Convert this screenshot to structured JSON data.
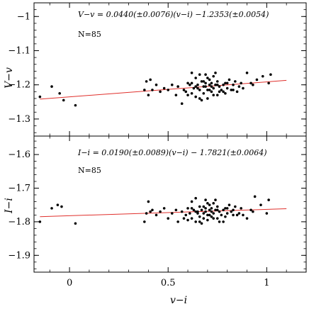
{
  "chart_data": [
    {
      "type": "scatter",
      "xlabel": "",
      "ylabel": "V−v",
      "xlim": [
        -0.18,
        1.2
      ],
      "ylim": [
        -1.35,
        -0.96
      ],
      "yticks": [
        -1.3,
        -1.2,
        -1.1,
        -1.0
      ],
      "ytick_labels": [
        "−1.3",
        "−1.2",
        "−1.1",
        "−1"
      ],
      "annotation": "V−v = 0.0440(±0.0076)(v−i) −1.2353(±0.0054)",
      "n_label": "N=85",
      "fit": {
        "slope": 0.044,
        "intercept": -1.2353,
        "color": "#e0302c"
      },
      "points": [
        [
          -0.15,
          -1.235
        ],
        [
          -0.09,
          -1.205
        ],
        [
          -0.05,
          -1.225
        ],
        [
          -0.03,
          -1.245
        ],
        [
          0.03,
          -1.26
        ],
        [
          0.38,
          -1.215
        ],
        [
          0.39,
          -1.19
        ],
        [
          0.4,
          -1.23
        ],
        [
          0.41,
          -1.185
        ],
        [
          0.42,
          -1.215
        ],
        [
          0.44,
          -1.2
        ],
        [
          0.46,
          -1.22
        ],
        [
          0.48,
          -1.21
        ],
        [
          0.5,
          -1.215
        ],
        [
          0.52,
          -1.2
        ],
        [
          0.54,
          -1.23
        ],
        [
          0.55,
          -1.205
        ],
        [
          0.57,
          -1.255
        ],
        [
          0.58,
          -1.215
        ],
        [
          0.59,
          -1.22
        ],
        [
          0.6,
          -1.195
        ],
        [
          0.61,
          -1.2
        ],
        [
          0.62,
          -1.165
        ],
        [
          0.62,
          -1.225
        ],
        [
          0.63,
          -1.21
        ],
        [
          0.64,
          -1.18
        ],
        [
          0.64,
          -1.235
        ],
        [
          0.65,
          -1.2
        ],
        [
          0.66,
          -1.215
        ],
        [
          0.66,
          -1.17
        ],
        [
          0.67,
          -1.19
        ],
        [
          0.68,
          -1.225
        ],
        [
          0.68,
          -1.205
        ],
        [
          0.69,
          -1.195
        ],
        [
          0.69,
          -1.17
        ],
        [
          0.7,
          -1.215
        ],
        [
          0.7,
          -1.24
        ],
        [
          0.71,
          -1.2
        ],
        [
          0.71,
          -1.185
        ],
        [
          0.72,
          -1.22
        ],
        [
          0.72,
          -1.195
        ],
        [
          0.73,
          -1.21
        ],
        [
          0.73,
          -1.175
        ],
        [
          0.74,
          -1.2
        ],
        [
          0.75,
          -1.23
        ],
        [
          0.75,
          -1.19
        ],
        [
          0.76,
          -1.205
        ],
        [
          0.77,
          -1.215
        ],
        [
          0.78,
          -1.2
        ],
        [
          0.79,
          -1.225
        ],
        [
          0.8,
          -1.195
        ],
        [
          0.81,
          -1.185
        ],
        [
          0.82,
          -1.215
        ],
        [
          0.83,
          -1.2
        ],
        [
          0.84,
          -1.19
        ],
        [
          0.86,
          -1.205
        ],
        [
          0.88,
          -1.21
        ],
        [
          0.9,
          -1.165
        ],
        [
          0.92,
          -1.195
        ],
        [
          0.95,
          -1.185
        ],
        [
          0.98,
          -1.175
        ],
        [
          1.01,
          -1.195
        ],
        [
          1.02,
          -1.17
        ],
        [
          0.76,
          -1.22
        ],
        [
          0.85,
          -1.22
        ],
        [
          0.6,
          -1.23
        ],
        [
          0.67,
          -1.245
        ],
        [
          0.7,
          -1.18
        ],
        [
          0.74,
          -1.165
        ],
        [
          0.78,
          -1.22
        ],
        [
          0.65,
          -1.21
        ],
        [
          0.69,
          -1.205
        ],
        [
          0.73,
          -1.23
        ],
        [
          0.8,
          -1.21
        ],
        [
          0.87,
          -1.195
        ],
        [
          0.93,
          -1.2
        ],
        [
          0.62,
          -1.195
        ],
        [
          0.66,
          -1.24
        ],
        [
          0.72,
          -1.205
        ],
        [
          0.75,
          -1.2
        ],
        [
          0.79,
          -1.195
        ],
        [
          0.83,
          -1.215
        ],
        [
          0.71,
          -1.215
        ],
        [
          0.68,
          -1.19
        ],
        [
          0.64,
          -1.205
        ]
      ]
    },
    {
      "type": "scatter",
      "xlabel": "v−i",
      "ylabel": "I−i",
      "xlim": [
        -0.18,
        1.2
      ],
      "ylim": [
        -1.95,
        -1.545
      ],
      "yticks": [
        -1.9,
        -1.8,
        -1.7,
        -1.6
      ],
      "ytick_labels": [
        "−1.9",
        "−1.8",
        "−1.7",
        "−1.6"
      ],
      "xticks": [
        0,
        0.5,
        1
      ],
      "xtick_labels": [
        "0",
        "0.5",
        "1"
      ],
      "annotation": "I−i = 0.0190(±0.0089)(v−i) − 1.7821(±0.0064)",
      "n_label": "N=85",
      "fit": {
        "slope": 0.019,
        "intercept": -1.7821,
        "color": "#e0302c"
      },
      "points": [
        [
          -0.15,
          -1.8
        ],
        [
          -0.09,
          -1.76
        ],
        [
          -0.06,
          -1.75
        ],
        [
          -0.04,
          -1.755
        ],
        [
          0.03,
          -1.805
        ],
        [
          0.38,
          -1.8
        ],
        [
          0.39,
          -1.775
        ],
        [
          0.4,
          -1.74
        ],
        [
          0.41,
          -1.77
        ],
        [
          0.42,
          -1.765
        ],
        [
          0.44,
          -1.78
        ],
        [
          0.46,
          -1.77
        ],
        [
          0.48,
          -1.76
        ],
        [
          0.5,
          -1.79
        ],
        [
          0.52,
          -1.775
        ],
        [
          0.54,
          -1.765
        ],
        [
          0.55,
          -1.8
        ],
        [
          0.57,
          -1.77
        ],
        [
          0.58,
          -1.79
        ],
        [
          0.59,
          -1.78
        ],
        [
          0.6,
          -1.76
        ],
        [
          0.61,
          -1.775
        ],
        [
          0.62,
          -1.74
        ],
        [
          0.62,
          -1.79
        ],
        [
          0.63,
          -1.765
        ],
        [
          0.64,
          -1.73
        ],
        [
          0.64,
          -1.8
        ],
        [
          0.65,
          -1.77
        ],
        [
          0.66,
          -1.785
        ],
        [
          0.66,
          -1.755
        ],
        [
          0.67,
          -1.765
        ],
        [
          0.68,
          -1.79
        ],
        [
          0.68,
          -1.775
        ],
        [
          0.69,
          -1.76
        ],
        [
          0.69,
          -1.735
        ],
        [
          0.7,
          -1.78
        ],
        [
          0.7,
          -1.795
        ],
        [
          0.71,
          -1.765
        ],
        [
          0.71,
          -1.75
        ],
        [
          0.72,
          -1.785
        ],
        [
          0.72,
          -1.76
        ],
        [
          0.73,
          -1.775
        ],
        [
          0.73,
          -1.745
        ],
        [
          0.74,
          -1.765
        ],
        [
          0.75,
          -1.79
        ],
        [
          0.75,
          -1.755
        ],
        [
          0.76,
          -1.77
        ],
        [
          0.77,
          -1.78
        ],
        [
          0.78,
          -1.765
        ],
        [
          0.79,
          -1.785
        ],
        [
          0.8,
          -1.76
        ],
        [
          0.81,
          -1.75
        ],
        [
          0.82,
          -1.77
        ],
        [
          0.83,
          -1.765
        ],
        [
          0.84,
          -1.755
        ],
        [
          0.86,
          -1.775
        ],
        [
          0.88,
          -1.78
        ],
        [
          0.9,
          -1.79
        ],
        [
          0.92,
          -1.765
        ],
        [
          0.94,
          -1.725
        ],
        [
          0.97,
          -1.75
        ],
        [
          1.0,
          -1.775
        ],
        [
          1.01,
          -1.735
        ],
        [
          0.76,
          -1.8
        ],
        [
          0.85,
          -1.78
        ],
        [
          0.6,
          -1.795
        ],
        [
          0.67,
          -1.805
        ],
        [
          0.7,
          -1.745
        ],
        [
          0.74,
          -1.735
        ],
        [
          0.78,
          -1.8
        ],
        [
          0.65,
          -1.775
        ],
        [
          0.69,
          -1.77
        ],
        [
          0.73,
          -1.79
        ],
        [
          0.8,
          -1.775
        ],
        [
          0.87,
          -1.76
        ],
        [
          0.93,
          -1.77
        ],
        [
          0.62,
          -1.76
        ],
        [
          0.66,
          -1.8
        ],
        [
          0.72,
          -1.77
        ],
        [
          0.75,
          -1.765
        ],
        [
          0.79,
          -1.76
        ],
        [
          0.83,
          -1.78
        ],
        [
          0.71,
          -1.78
        ],
        [
          0.68,
          -1.755
        ],
        [
          0.64,
          -1.77
        ]
      ]
    }
  ]
}
